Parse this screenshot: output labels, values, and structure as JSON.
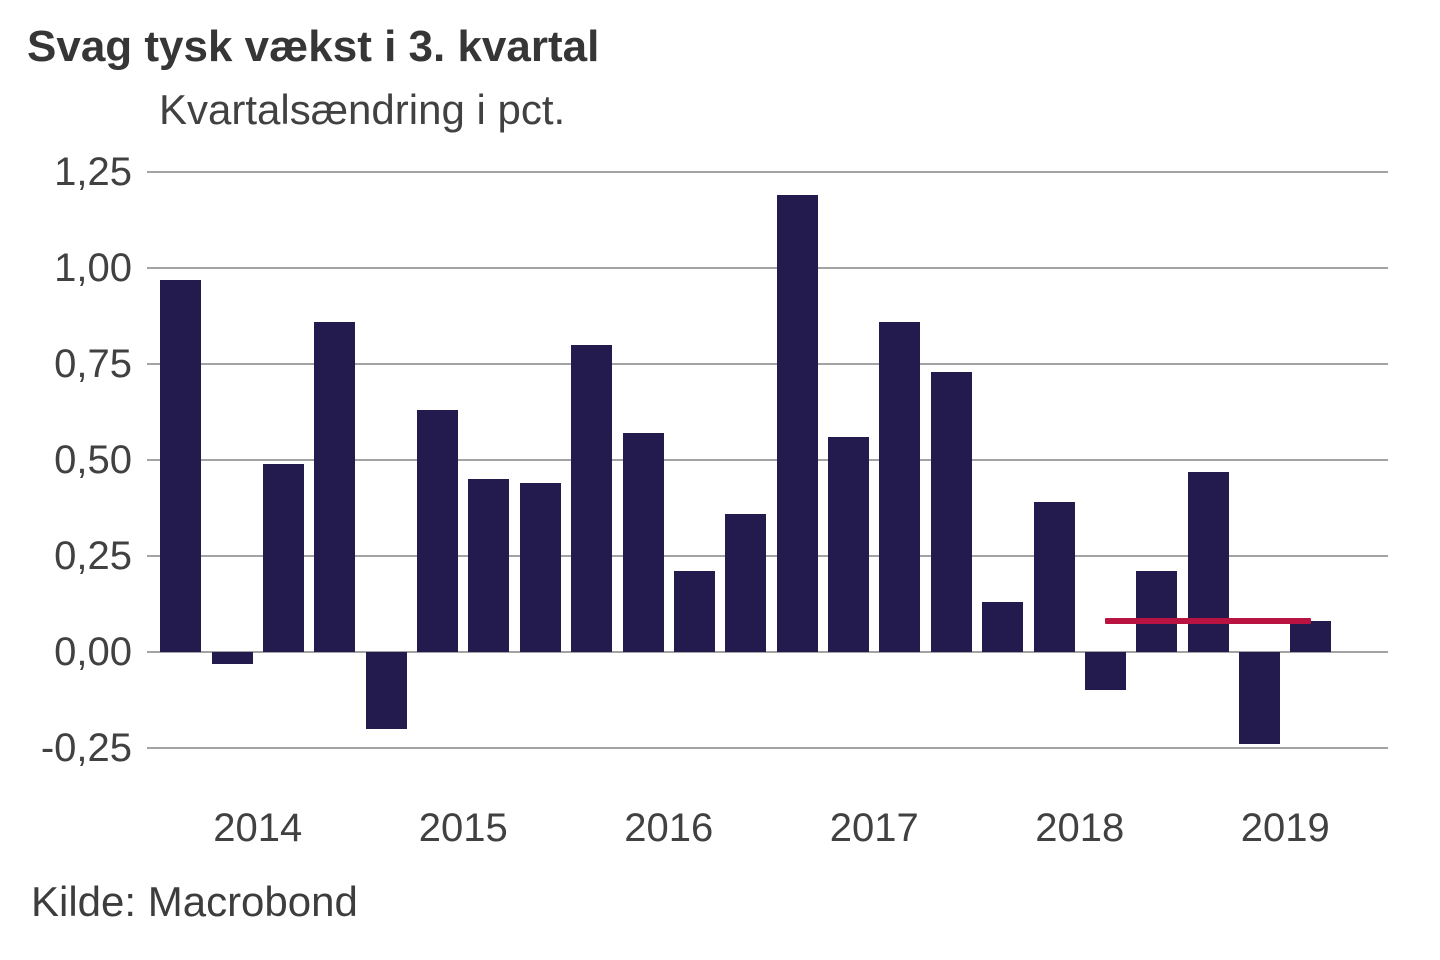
{
  "header": {
    "title": "Svag tysk vækst i 3. kvartal",
    "subtitle": "Kvartalsændring i pct."
  },
  "footer": {
    "source": "Kilde: Macrobond"
  },
  "chart_data": {
    "type": "bar",
    "title": "Svag tysk vækst i 3. kvartal",
    "subtitle": "Kvartalsændring i pct.",
    "categories": [
      "2014K1",
      "2014K2",
      "2014K3",
      "2014K4",
      "2015K1",
      "2015K2",
      "2015K3",
      "2015K4",
      "2016K1",
      "2016K2",
      "2016K3",
      "2016K4",
      "2017K1",
      "2017K2",
      "2017K3",
      "2017K4",
      "2018K1",
      "2018K2",
      "2018K3",
      "2018K4",
      "2019K1",
      "2019K2",
      "2019K3"
    ],
    "values": [
      0.97,
      -0.03,
      0.49,
      0.86,
      -0.2,
      0.63,
      0.45,
      0.44,
      0.8,
      0.57,
      0.21,
      0.36,
      1.19,
      0.56,
      0.86,
      0.73,
      0.13,
      0.39,
      -0.1,
      0.21,
      0.47,
      -0.24,
      0.08
    ],
    "xlabel": "",
    "ylabel": "Kvartalsændring i pct.",
    "xtick_labels": [
      "2014",
      "2015",
      "2016",
      "2017",
      "2018",
      "2019"
    ],
    "ytick_labels": [
      "1,25",
      "1,00",
      "0,75",
      "0,50",
      "0,25",
      "0,00",
      "-0,25"
    ],
    "ytick_values": [
      1.25,
      1.0,
      0.75,
      0.5,
      0.25,
      0.0,
      -0.25
    ],
    "ylim": [
      -0.25,
      1.25
    ],
    "x_slots_total": 24,
    "grid": "horizontal",
    "legend": "none",
    "bar_color": "#231b4d",
    "gridline_color": "#a3a3a3",
    "reference_line": {
      "value": 0.08,
      "color": "#b81341",
      "start_index": 18,
      "end_index": 22
    }
  }
}
